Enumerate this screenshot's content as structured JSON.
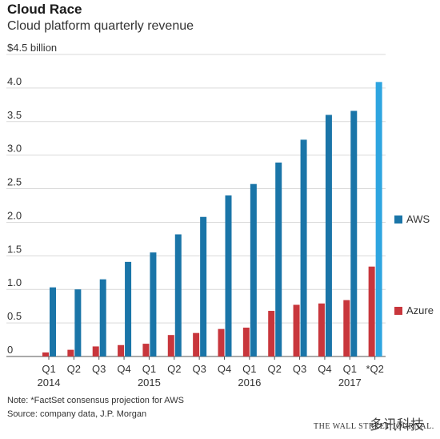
{
  "header": {
    "title": "Cloud Race",
    "subtitle": "Cloud platform quarterly revenue"
  },
  "chart_data": {
    "type": "bar",
    "title": "Cloud Race",
    "subtitle": "Cloud platform quarterly revenue",
    "unit_label": "$4.5 billion",
    "ylim": [
      0,
      4.5
    ],
    "yticks": [
      "0",
      "0.5",
      "1.0",
      "1.5",
      "2.0",
      "2.5",
      "3.0",
      "3.5",
      "4.0"
    ],
    "categories": [
      "Q1",
      "Q2",
      "Q3",
      "Q4",
      "Q1",
      "Q2",
      "Q3",
      "Q4",
      "Q1",
      "Q2",
      "Q3",
      "Q4",
      "Q1",
      "*Q2"
    ],
    "year_labels": [
      "2014",
      "2015",
      "2016",
      "2017"
    ],
    "grid": true,
    "legend_position": "right",
    "series": [
      {
        "name": "AWS",
        "color": "#1a75a8",
        "projection_color": "#2ea5e0",
        "values": [
          1.03,
          1.0,
          1.15,
          1.41,
          1.55,
          1.82,
          2.08,
          2.4,
          2.57,
          2.89,
          3.23,
          3.6,
          3.66,
          4.09
        ]
      },
      {
        "name": "Azure",
        "color": "#c8363c",
        "values": [
          0.06,
          0.1,
          0.15,
          0.17,
          0.19,
          0.32,
          0.35,
          0.41,
          0.43,
          0.68,
          0.77,
          0.79,
          0.84,
          1.34
        ]
      }
    ]
  },
  "legend": {
    "aws": "AWS",
    "azure": "Azure"
  },
  "notes": {
    "note": "Note: *FactSet consensus projection for AWS",
    "source": "Source: company data, J.P. Morgan"
  },
  "credit": "THE WALL STREET JOURNAL.",
  "watermark": "多讯科技"
}
